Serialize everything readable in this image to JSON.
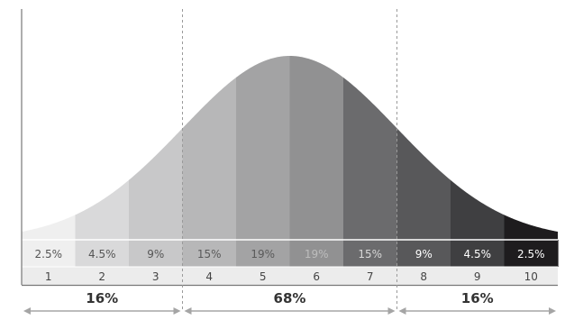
{
  "chart_data": {
    "type": "area",
    "title": "",
    "xlabel": "",
    "ylabel": "",
    "categories": [
      "1",
      "2",
      "3",
      "4",
      "5",
      "6",
      "7",
      "8",
      "9",
      "10"
    ],
    "values": [
      2.5,
      4.5,
      9,
      15,
      19,
      19,
      15,
      9,
      4.5,
      2.5
    ],
    "value_labels": [
      "2.5%",
      "4.5%",
      "9%",
      "15%",
      "19%",
      "19%",
      "15%",
      "9%",
      "4.5%",
      "2.5%"
    ],
    "band_colors": [
      "#efefef",
      "#d9d9da",
      "#c8c8c9",
      "#b7b7b8",
      "#a3a3a4",
      "#919192",
      "#6b6b6d",
      "#58585a",
      "#3f3f41",
      "#1e1c1e"
    ],
    "band_label_colors": [
      "#555555",
      "#555555",
      "#555555",
      "#5a5a5a",
      "#5a5a5a",
      "#bdbdbd",
      "#d8d8d8",
      "#ffffff",
      "#ffffff",
      "#ffffff"
    ],
    "grid": false,
    "groups": [
      {
        "label": "16%",
        "from": 1,
        "to": 3
      },
      {
        "label": "68%",
        "from": 4,
        "to": 7
      },
      {
        "label": "16%",
        "from": 8,
        "to": 10
      }
    ]
  }
}
